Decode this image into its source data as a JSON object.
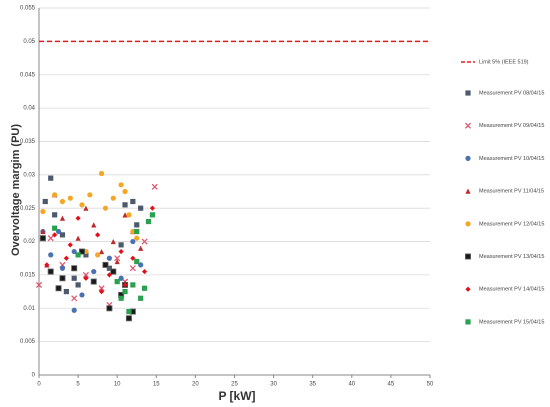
{
  "chart_data": {
    "type": "scatter",
    "x_label": "P [kW]",
    "y_label": "Overvoltage margim (PU)",
    "xlim": [
      0,
      50
    ],
    "ylim": [
      0,
      0.055
    ],
    "xticks": [
      0,
      5,
      10,
      15,
      20,
      25,
      30,
      35,
      40,
      45,
      50
    ],
    "yticks": [
      0,
      0.005,
      0.01,
      0.015,
      0.02,
      0.025,
      0.03,
      0.035,
      0.04,
      0.045,
      0.05,
      0.055
    ],
    "grid": "y",
    "legend": "right",
    "reference_line": {
      "name": "Limit 5% (IEEE 519)",
      "value": 0.05,
      "color": "#e02020"
    },
    "series": [
      {
        "name": "Measurement PV 08/04/15",
        "color": "#4d5a6e",
        "marker": "square",
        "x": [
          1.5,
          2,
          0.8,
          3,
          4.5,
          6,
          9,
          11,
          12,
          12.5,
          13,
          11.5,
          5,
          3.5,
          10.5
        ],
        "values": [
          0.0295,
          0.024,
          0.026,
          0.021,
          0.0145,
          0.018,
          0.016,
          0.0255,
          0.026,
          0.0225,
          0.025,
          0.0085,
          0.0135,
          0.0125,
          0.0195
        ]
      },
      {
        "name": "Measurement PV 09/04/15",
        "color": "#e0506a",
        "marker": "x",
        "x": [
          0,
          14.8,
          1.5,
          3,
          6,
          8,
          10,
          12,
          13.5,
          4.5,
          9,
          11
        ],
        "values": [
          0.0135,
          0.0282,
          0.0205,
          0.0165,
          0.015,
          0.013,
          0.0175,
          0.016,
          0.02,
          0.0115,
          0.0105,
          0.014
        ]
      },
      {
        "name": "Measurement PV 10/04/15",
        "color": "#4a72b0",
        "marker": "circle",
        "x": [
          0.5,
          1.5,
          2.5,
          3,
          4.5,
          5.5,
          7,
          9,
          10.5,
          12,
          13,
          4.5
        ],
        "values": [
          0.0215,
          0.018,
          0.0215,
          0.016,
          0.0185,
          0.012,
          0.0155,
          0.0175,
          0.0145,
          0.02,
          0.0165,
          0.0097
        ]
      },
      {
        "name": "Measurement PV 11/04/15",
        "color": "#c0282a",
        "marker": "triangle",
        "x": [
          0.5,
          2,
          3,
          5,
          7,
          8,
          9.5,
          11,
          12,
          13,
          1,
          10,
          6
        ],
        "values": [
          0.0215,
          0.027,
          0.0235,
          0.0205,
          0.0225,
          0.0185,
          0.02,
          0.024,
          0.0215,
          0.019,
          0.0165,
          0.017,
          0.025
        ]
      },
      {
        "name": "Measurement PV 12/04/15",
        "color": "#f5a623",
        "marker": "circle",
        "x": [
          0.5,
          2,
          3,
          4,
          5.5,
          6.5,
          8,
          8.5,
          9.5,
          10.5,
          11,
          11.5,
          12,
          6,
          7.5,
          12.5
        ],
        "values": [
          0.0245,
          0.027,
          0.026,
          0.0265,
          0.0255,
          0.027,
          0.0302,
          0.025,
          0.0265,
          0.0285,
          0.0275,
          0.024,
          0.0215,
          0.0185,
          0.018,
          0.0205
        ]
      },
      {
        "name": "Measurement PV 13/04/15",
        "color": "#1a1a1a",
        "marker": "square",
        "x": [
          0.5,
          1.5,
          2.5,
          3,
          4.5,
          5.5,
          7,
          8.5,
          9.5,
          10.5,
          11,
          12,
          11.5,
          9
        ],
        "values": [
          0.0205,
          0.0155,
          0.013,
          0.0145,
          0.016,
          0.0185,
          0.014,
          0.0165,
          0.0155,
          0.012,
          0.0135,
          0.0095,
          0.0085,
          0.01
        ]
      },
      {
        "name": "Measurement PV 14/04/15",
        "color": "#e0101a",
        "marker": "diamond",
        "x": [
          1,
          2,
          3.5,
          5,
          6,
          7.5,
          8,
          9,
          10.5,
          12,
          13.5,
          14.5,
          11,
          4
        ],
        "values": [
          0.0165,
          0.021,
          0.0175,
          0.0235,
          0.0145,
          0.021,
          0.0125,
          0.015,
          0.0185,
          0.0175,
          0.0155,
          0.025,
          0.0135,
          0.0195
        ]
      },
      {
        "name": "Measurement PV 15/04/15",
        "color": "#2aa050",
        "marker": "square",
        "x": [
          2,
          5,
          10.5,
          11,
          12,
          12.5,
          13,
          13.5,
          14,
          12.5,
          14.5,
          11.5,
          10
        ],
        "values": [
          0.022,
          0.018,
          0.0115,
          0.0125,
          0.0135,
          0.0215,
          0.0115,
          0.013,
          0.023,
          0.017,
          0.024,
          0.0095,
          0.014
        ]
      }
    ]
  }
}
